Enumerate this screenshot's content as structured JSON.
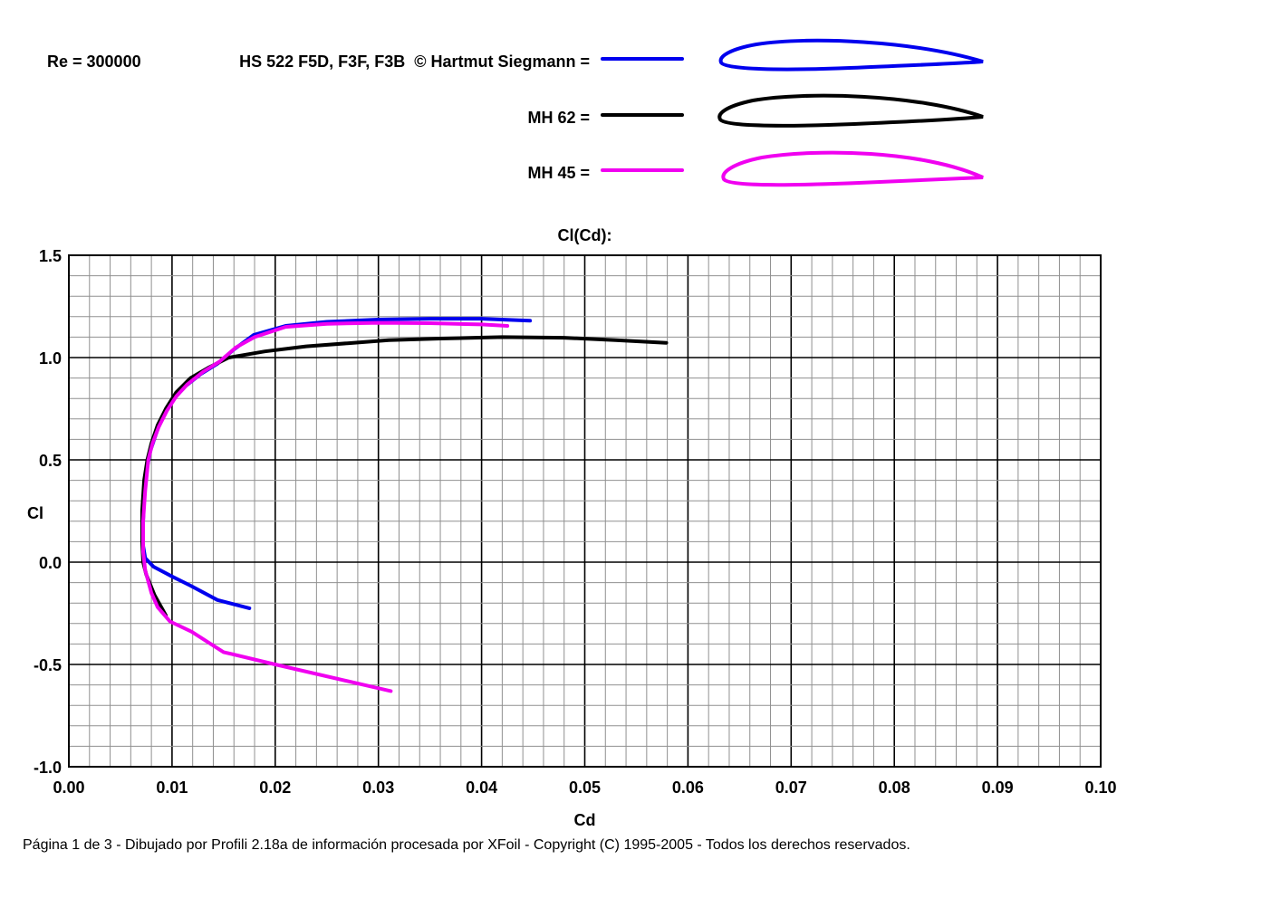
{
  "header": {
    "re_label": "Re = 300000",
    "legend": [
      {
        "id": "hs522",
        "label": "HS 522 F5D, F3F, F3B  © Hartmut Siegmann =",
        "color": "#0000ee"
      },
      {
        "id": "mh62",
        "label": "MH 62 =",
        "color": "#000000"
      },
      {
        "id": "mh45",
        "label": "MH 45 =",
        "color": "#f000f0"
      }
    ]
  },
  "chart_data": {
    "type": "line",
    "title": "Cl(Cd):",
    "xlabel": "Cd",
    "ylabel": "Cl",
    "xlim": [
      0.0,
      0.1
    ],
    "ylim": [
      -1.0,
      1.5
    ],
    "grid": true,
    "x_minor_step": 0.002,
    "y_minor_step": 0.1,
    "x_tick_values": [
      0.0,
      0.01,
      0.02,
      0.03,
      0.04,
      0.05,
      0.06,
      0.07,
      0.08,
      0.09,
      0.1
    ],
    "x_tick_labels": [
      "0.00",
      "0.01",
      "0.02",
      "0.03",
      "0.04",
      "0.05",
      "0.06",
      "0.07",
      "0.08",
      "0.09",
      "0.10"
    ],
    "y_tick_values": [
      1.5,
      1.0,
      0.5,
      0.0,
      -0.5,
      -1.0
    ],
    "y_tick_labels": [
      "1.5",
      "1.0",
      "0.5",
      "0.0",
      "-0.5",
      "-1.0"
    ],
    "legend_position": "top-right-of-page",
    "series": [
      {
        "id": "hs522",
        "name": "HS 522 F5D, F3F, F3B",
        "color": "#0000ee",
        "points": [
          [
            0.0175,
            -0.225
          ],
          [
            0.0144,
            -0.185
          ],
          [
            0.0118,
            -0.115
          ],
          [
            0.01,
            -0.07
          ],
          [
            0.0082,
            -0.022
          ],
          [
            0.0074,
            0.02
          ],
          [
            0.0072,
            0.08
          ],
          [
            0.0072,
            0.2
          ],
          [
            0.0073,
            0.32
          ],
          [
            0.0075,
            0.44
          ],
          [
            0.0079,
            0.545
          ],
          [
            0.0086,
            0.65
          ],
          [
            0.0093,
            0.73
          ],
          [
            0.0102,
            0.8
          ],
          [
            0.0113,
            0.86
          ],
          [
            0.0128,
            0.92
          ],
          [
            0.0144,
            0.97
          ],
          [
            0.016,
            1.04
          ],
          [
            0.0179,
            1.11
          ],
          [
            0.021,
            1.155
          ],
          [
            0.025,
            1.175
          ],
          [
            0.03,
            1.186
          ],
          [
            0.035,
            1.19
          ],
          [
            0.04,
            1.19
          ],
          [
            0.0447,
            1.18
          ]
        ]
      },
      {
        "id": "mh62",
        "name": "MH 62",
        "color": "#000000",
        "points": [
          [
            0.0094,
            -0.26
          ],
          [
            0.0083,
            -0.16
          ],
          [
            0.0075,
            -0.06
          ],
          [
            0.0072,
            0.0
          ],
          [
            0.0071,
            0.1
          ],
          [
            0.0071,
            0.25
          ],
          [
            0.0073,
            0.4
          ],
          [
            0.0076,
            0.5
          ],
          [
            0.008,
            0.58
          ],
          [
            0.0086,
            0.67
          ],
          [
            0.0094,
            0.75
          ],
          [
            0.0104,
            0.83
          ],
          [
            0.0118,
            0.9
          ],
          [
            0.0135,
            0.95
          ],
          [
            0.0155,
            1.0
          ],
          [
            0.019,
            1.03
          ],
          [
            0.023,
            1.055
          ],
          [
            0.027,
            1.07
          ],
          [
            0.031,
            1.085
          ],
          [
            0.036,
            1.093
          ],
          [
            0.042,
            1.1
          ],
          [
            0.048,
            1.097
          ],
          [
            0.053,
            1.085
          ],
          [
            0.0579,
            1.072
          ]
        ]
      },
      {
        "id": "mh45",
        "name": "MH 45",
        "color": "#f000f0",
        "points": [
          [
            0.0312,
            -0.63
          ],
          [
            0.02,
            -0.5
          ],
          [
            0.015,
            -0.44
          ],
          [
            0.0119,
            -0.34
          ],
          [
            0.0098,
            -0.29
          ],
          [
            0.0086,
            -0.22
          ],
          [
            0.008,
            -0.15
          ],
          [
            0.0074,
            -0.04
          ],
          [
            0.0072,
            0.05
          ],
          [
            0.0072,
            0.2
          ],
          [
            0.0074,
            0.35
          ],
          [
            0.0077,
            0.5
          ],
          [
            0.0081,
            0.58
          ],
          [
            0.0087,
            0.66
          ],
          [
            0.0095,
            0.74
          ],
          [
            0.0104,
            0.81
          ],
          [
            0.0115,
            0.87
          ],
          [
            0.013,
            0.93
          ],
          [
            0.0146,
            0.98
          ],
          [
            0.0162,
            1.05
          ],
          [
            0.018,
            1.1
          ],
          [
            0.021,
            1.15
          ],
          [
            0.025,
            1.165
          ],
          [
            0.03,
            1.17
          ],
          [
            0.035,
            1.168
          ],
          [
            0.04,
            1.162
          ],
          [
            0.0425,
            1.155
          ]
        ]
      }
    ]
  },
  "footer": {
    "text": "Página 1 de 3 - Dibujado por Profili 2.18a de información procesada por XFoil - Copyright (C) 1995-2005 - Todos los derechos reservados."
  },
  "style": {
    "grid_minor_color": "#909090",
    "grid_major_color": "#000000",
    "border_color": "#000000"
  }
}
